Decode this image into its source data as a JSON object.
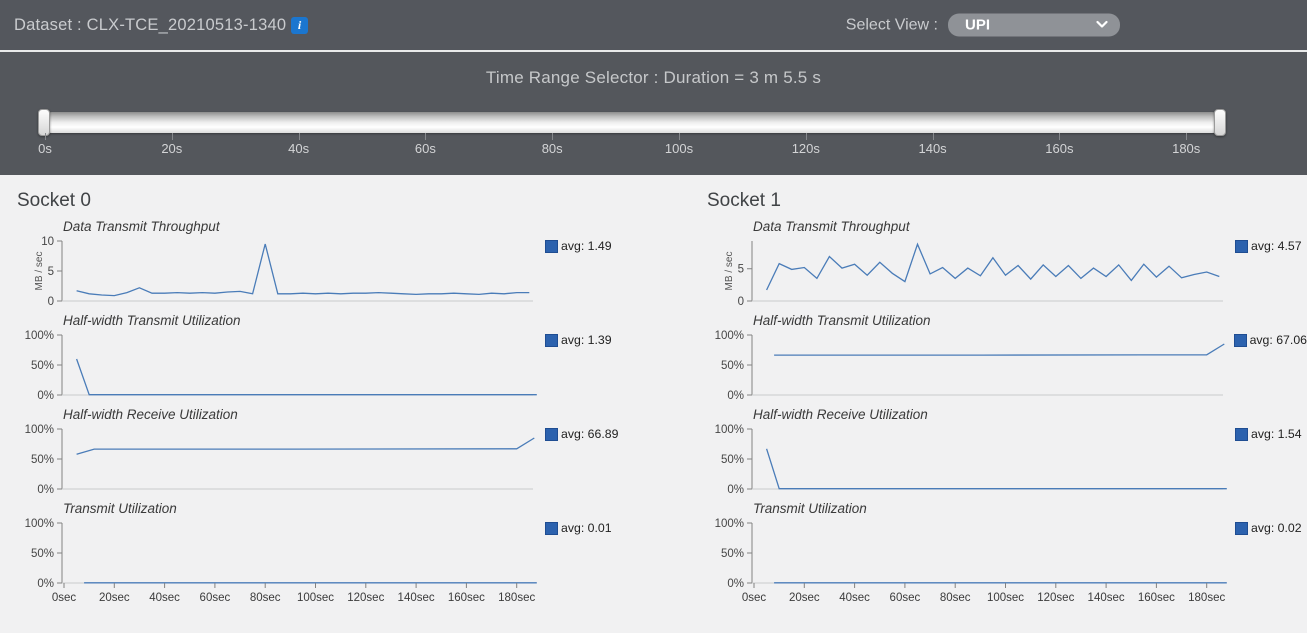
{
  "header": {
    "dataset_label": "Dataset : CLX-TCE_20210513-1340",
    "info_icon": "i",
    "select_view_label": "Select View :",
    "selected_view": "UPI"
  },
  "time_range": {
    "title": "Time Range Selector : Duration = 3 m 5.5 s",
    "ticks": [
      "0s",
      "20s",
      "40s",
      "60s",
      "80s",
      "100s",
      "120s",
      "140s",
      "160s",
      "180s"
    ]
  },
  "x_axis_labels": [
    "0sec",
    "20sec",
    "40sec",
    "60sec",
    "80sec",
    "100sec",
    "120sec",
    "140sec",
    "160sec",
    "180sec"
  ],
  "colors": {
    "line": "#4a7cb8",
    "legend_square": "#2c62ae",
    "header_bg": "#54575d",
    "page_bg": "#f1f1f2",
    "info_icon_bg": "#1b76cf"
  },
  "sockets": [
    {
      "title": "Socket 0",
      "charts": [
        {
          "title": "Data Transmit Throughput",
          "ylabel": "MB / sec",
          "type": "line",
          "ymax": 10,
          "yticks": [
            {
              "v": 10,
              "label": "10"
            },
            {
              "v": 5,
              "label": "5"
            },
            {
              "v": 0,
              "label": "0"
            }
          ],
          "avg_label": "avg: 1.49",
          "points": [
            [
              5,
              1.7
            ],
            [
              10,
              1.2
            ],
            [
              15,
              1.0
            ],
            [
              20,
              0.9
            ],
            [
              25,
              1.4
            ],
            [
              30,
              2.2
            ],
            [
              35,
              1.3
            ],
            [
              40,
              1.3
            ],
            [
              45,
              1.4
            ],
            [
              50,
              1.3
            ],
            [
              55,
              1.4
            ],
            [
              60,
              1.3
            ],
            [
              65,
              1.5
            ],
            [
              70,
              1.6
            ],
            [
              75,
              1.2
            ],
            [
              80,
              9.5
            ],
            [
              85,
              1.2
            ],
            [
              90,
              1.2
            ],
            [
              95,
              1.3
            ],
            [
              100,
              1.2
            ],
            [
              105,
              1.3
            ],
            [
              110,
              1.2
            ],
            [
              115,
              1.3
            ],
            [
              120,
              1.3
            ],
            [
              125,
              1.4
            ],
            [
              130,
              1.3
            ],
            [
              135,
              1.2
            ],
            [
              140,
              1.1
            ],
            [
              145,
              1.2
            ],
            [
              150,
              1.2
            ],
            [
              155,
              1.3
            ],
            [
              160,
              1.2
            ],
            [
              165,
              1.1
            ],
            [
              170,
              1.3
            ],
            [
              175,
              1.2
            ],
            [
              180,
              1.4
            ],
            [
              185,
              1.4
            ]
          ]
        },
        {
          "title": "Half-width Transmit Utilization",
          "type": "line",
          "ymax": 100,
          "yticks": [
            {
              "v": 100,
              "label": "100%"
            },
            {
              "v": 50,
              "label": "50%"
            },
            {
              "v": 0,
              "label": "0%"
            }
          ],
          "avg_label": "avg: 1.39",
          "points": [
            [
              5,
              60
            ],
            [
              10,
              0.5
            ],
            [
              60,
              0.5
            ],
            [
              120,
              0.5
            ],
            [
              188,
              0.5
            ]
          ]
        },
        {
          "title": "Half-width Receive Utilization",
          "type": "line",
          "ymax": 100,
          "yticks": [
            {
              "v": 100,
              "label": "100%"
            },
            {
              "v": 50,
              "label": "50%"
            },
            {
              "v": 0,
              "label": "0%"
            }
          ],
          "avg_label": "avg: 66.89",
          "points": [
            [
              5,
              58
            ],
            [
              12,
              66.5
            ],
            [
              90,
              66.5
            ],
            [
              180,
              67
            ],
            [
              187,
              85
            ]
          ]
        },
        {
          "title": "Transmit Utilization",
          "type": "line",
          "ymax": 100,
          "yticks": [
            {
              "v": 100,
              "label": "100%"
            },
            {
              "v": 50,
              "label": "50%"
            },
            {
              "v": 0,
              "label": "0%"
            }
          ],
          "avg_label": "avg: 0.01",
          "points": [
            [
              8,
              0.4
            ],
            [
              60,
              0.4
            ],
            [
              120,
              0.4
            ],
            [
              188,
              0.4
            ]
          ]
        }
      ]
    },
    {
      "title": "Socket 1",
      "charts": [
        {
          "title": "Data Transmit Throughput",
          "ylabel": "MB / sec",
          "type": "line",
          "ymax": 9.3,
          "yticks": [
            {
              "v": 5,
              "label": "5"
            },
            {
              "v": 0,
              "label": "0"
            }
          ],
          "avg_label": "avg: 4.57",
          "points": [
            [
              5,
              1.7
            ],
            [
              10,
              5.8
            ],
            [
              15,
              4.9
            ],
            [
              20,
              5.2
            ],
            [
              25,
              3.5
            ],
            [
              30,
              6.9
            ],
            [
              35,
              5.1
            ],
            [
              40,
              5.7
            ],
            [
              45,
              4.0
            ],
            [
              50,
              6.0
            ],
            [
              55,
              4.3
            ],
            [
              60,
              3.0
            ],
            [
              65,
              8.8
            ],
            [
              70,
              4.2
            ],
            [
              75,
              5.2
            ],
            [
              80,
              3.5
            ],
            [
              85,
              5.1
            ],
            [
              90,
              3.9
            ],
            [
              95,
              6.7
            ],
            [
              100,
              4.0
            ],
            [
              105,
              5.5
            ],
            [
              110,
              3.4
            ],
            [
              115,
              5.6
            ],
            [
              120,
              3.8
            ],
            [
              125,
              5.5
            ],
            [
              130,
              3.5
            ],
            [
              135,
              5.1
            ],
            [
              140,
              3.8
            ],
            [
              145,
              5.6
            ],
            [
              150,
              3.2
            ],
            [
              155,
              5.7
            ],
            [
              160,
              3.7
            ],
            [
              165,
              5.4
            ],
            [
              170,
              3.6
            ],
            [
              175,
              4.1
            ],
            [
              180,
              4.5
            ],
            [
              185,
              3.8
            ]
          ]
        },
        {
          "title": "Half-width Transmit Utilization",
          "type": "line",
          "ymax": 100,
          "yticks": [
            {
              "v": 100,
              "label": "100%"
            },
            {
              "v": 50,
              "label": "50%"
            },
            {
              "v": 0,
              "label": "0%"
            }
          ],
          "avg_label": "avg: 67.06",
          "points": [
            [
              8,
              66.5
            ],
            [
              90,
              66.5
            ],
            [
              180,
              67
            ],
            [
              187,
              85
            ]
          ]
        },
        {
          "title": "Half-width Receive Utilization",
          "type": "line",
          "ymax": 100,
          "yticks": [
            {
              "v": 100,
              "label": "100%"
            },
            {
              "v": 50,
              "label": "50%"
            },
            {
              "v": 0,
              "label": "0%"
            }
          ],
          "avg_label": "avg: 1.54",
          "points": [
            [
              5,
              67
            ],
            [
              10,
              0.5
            ],
            [
              60,
              0.5
            ],
            [
              120,
              0.5
            ],
            [
              188,
              0.5
            ]
          ]
        },
        {
          "title": "Transmit Utilization",
          "type": "line",
          "ymax": 100,
          "yticks": [
            {
              "v": 100,
              "label": "100%"
            },
            {
              "v": 50,
              "label": "50%"
            },
            {
              "v": 0,
              "label": "0%"
            }
          ],
          "avg_label": "avg: 0.02",
          "points": [
            [
              8,
              0.4
            ],
            [
              60,
              0.4
            ],
            [
              120,
              0.4
            ],
            [
              188,
              0.4
            ]
          ]
        }
      ]
    }
  ]
}
